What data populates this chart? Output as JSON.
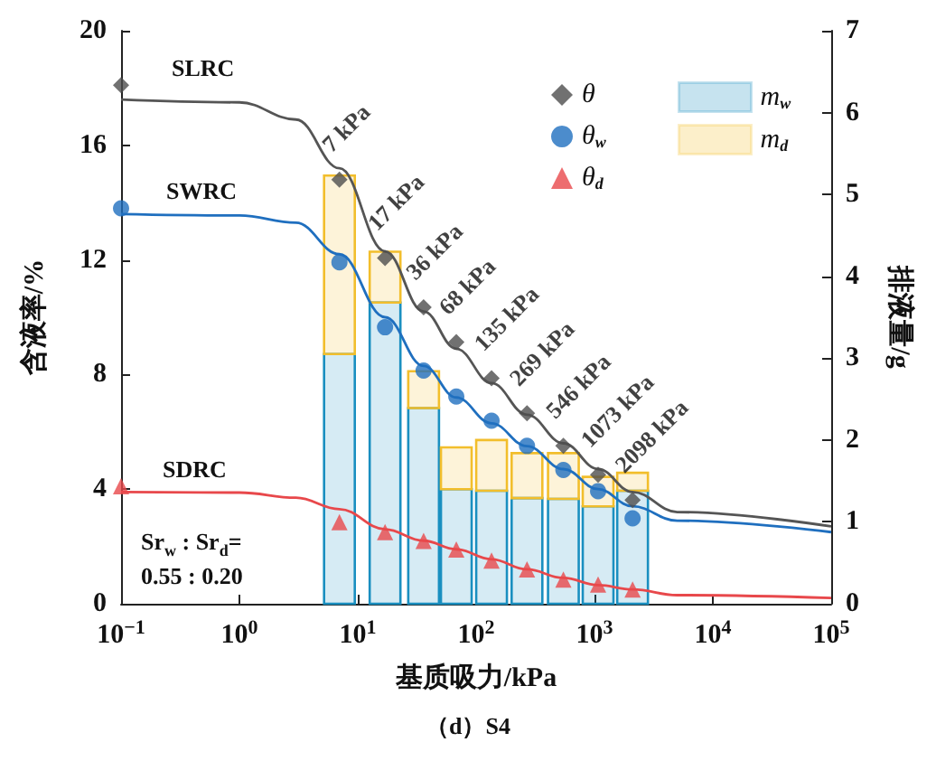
{
  "chart_data": {
    "type": "scatter",
    "xlabel": "基质吸力/kPa",
    "ylabel": "含液率/%",
    "y2label": "排液量/g",
    "log": "x",
    "xlim": [
      0.1,
      100000
    ],
    "xticks": [
      {
        "value": 0.1,
        "label": "10$^{−1}$"
      },
      {
        "value": 1,
        "label": "10$^{0}$"
      },
      {
        "value": 10,
        "label": "10$^{1}$"
      },
      {
        "value": 100,
        "label": "10$^{2}$"
      },
      {
        "value": 1000,
        "label": "10$^{3}$"
      },
      {
        "value": 10000,
        "label": "10$^{4}$"
      },
      {
        "value": 100000,
        "label": "10$^{5}$"
      }
    ],
    "ylim": [
      0,
      20
    ],
    "yticks": [
      0,
      4,
      8,
      12,
      16,
      20
    ],
    "y2lim": [
      0,
      7
    ],
    "y2ticks": [
      0,
      1,
      2,
      3,
      4,
      5,
      6,
      7
    ],
    "grid": false,
    "legend": "top right",
    "stacked": true,
    "series": [
      {
        "name": "m$_{w}$",
        "type": "bar",
        "axis": "y2",
        "color": "#1a8fc0",
        "x": [
          7,
          17,
          36,
          68,
          135,
          269,
          546,
          1073,
          2098
        ],
        "values": [
          3.05,
          3.68,
          2.39,
          1.4,
          1.38,
          1.29,
          1.28,
          1.19,
          1.38
        ]
      },
      {
        "name": "m$_{d}$",
        "type": "bar",
        "axis": "y2",
        "color": "#f2be2c",
        "x": [
          7,
          17,
          36,
          68,
          135,
          269,
          546,
          1073,
          2098
        ],
        "values": [
          2.18,
          0.62,
          0.45,
          0.51,
          0.62,
          0.55,
          0.56,
          0.36,
          0.22
        ]
      },
      {
        "type": "line",
        "color": "#555555",
        "x": [
          0.1,
          1,
          3,
          7,
          17,
          36,
          68,
          135,
          269,
          546,
          1073,
          2098,
          5000,
          100000
        ],
        "values": [
          17.6,
          17.5,
          16.9,
          15.2,
          12.3,
          10.2,
          8.9,
          7.7,
          6.6,
          5.6,
          4.7,
          3.9,
          3.2,
          2.7
        ]
      },
      {
        "type": "line",
        "color": "#1f6fbf",
        "x": [
          0.1,
          1,
          3,
          7,
          17,
          36,
          68,
          135,
          269,
          546,
          1073,
          2098,
          5000,
          100000
        ],
        "values": [
          13.6,
          13.55,
          13.3,
          12.2,
          10.0,
          8.3,
          7.2,
          6.3,
          5.5,
          4.7,
          4.0,
          3.4,
          2.9,
          2.5
        ]
      },
      {
        "type": "line",
        "color": "#e8484b",
        "x": [
          0.1,
          1,
          3,
          7,
          17,
          36,
          68,
          135,
          269,
          546,
          1073,
          2098,
          5000,
          100000
        ],
        "values": [
          3.9,
          3.88,
          3.7,
          3.3,
          2.6,
          2.2,
          1.9,
          1.55,
          1.2,
          0.9,
          0.65,
          0.5,
          0.3,
          0.2
        ]
      },
      {
        "name": "θ",
        "marker": "diamond",
        "color": "#4d4d4d",
        "x": [
          0.1,
          7,
          17,
          36,
          68,
          135,
          269,
          546,
          1073,
          2098
        ],
        "values": [
          18.1,
          14.8,
          12.07,
          10.35,
          9.13,
          7.87,
          6.65,
          5.51,
          4.5,
          3.62
        ]
      },
      {
        "name": "θ$_{w}$",
        "marker": "circle",
        "color": "#1f6fbf",
        "x": [
          0.1,
          7,
          17,
          36,
          68,
          135,
          269,
          546,
          1073,
          2098
        ],
        "values": [
          13.8,
          11.92,
          9.65,
          8.14,
          7.23,
          6.39,
          5.51,
          4.67,
          3.93,
          2.98
        ]
      },
      {
        "name": "θ$_{d}$",
        "marker": "triangle",
        "color": "#e8484b",
        "x": [
          0.1,
          7,
          17,
          36,
          68,
          135,
          269,
          546,
          1073,
          2098
        ],
        "values": [
          4.1,
          2.85,
          2.5,
          2.19,
          1.89,
          1.51,
          1.2,
          0.84,
          0.67,
          0.5
        ]
      }
    ],
    "annotations": [
      "SLRC",
      "SWRC",
      "SDRC",
      {
        "text": "7 kPa",
        "x": 7,
        "y": 14.8
      },
      {
        "text": "17 kPa",
        "x": 17,
        "y": 12.07
      },
      {
        "text": "36 kPa",
        "x": 36,
        "y": 10.35
      },
      {
        "text": "68 kPa",
        "x": 68,
        "y": 9.13
      },
      {
        "text": "135 kPa",
        "x": 135,
        "y": 7.87
      },
      {
        "text": "269 kPa",
        "x": 269,
        "y": 6.65
      },
      {
        "text": "546 kPa",
        "x": 546,
        "y": 5.51
      },
      {
        "text": "1073 kPa",
        "x": 1073,
        "y": 4.5
      },
      {
        "text": "2098 kPa",
        "x": 2098,
        "y": 3.62
      },
      "Sr$_{w}$ : Sr$_{d}$=\n0.55 : 0.20",
      "（d）S4"
    ]
  }
}
